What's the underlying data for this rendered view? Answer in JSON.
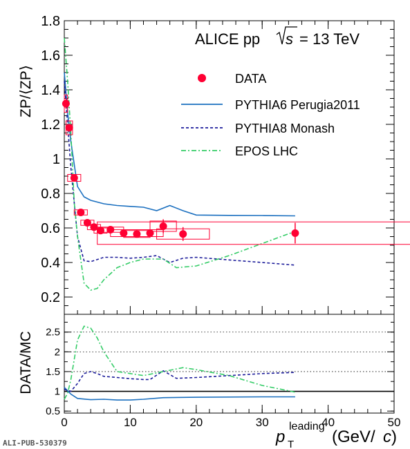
{
  "chart_data": [
    {
      "panel": "main",
      "type": "scatter",
      "title": "ALICE pp",
      "energy_label": "= 13 TeV",
      "ylabel": "ZP/⟨ZP⟩",
      "xlim": [
        0,
        50
      ],
      "ylim": [
        0.1,
        1.8
      ],
      "yticks": [
        0.2,
        0.4,
        0.6,
        0.8,
        1,
        1.2,
        1.4,
        1.6,
        1.8
      ],
      "legend_placement": "upper-right",
      "series": [
        {
          "name": "DATA",
          "kind": "points",
          "color": "#ff0033",
          "x": [
            0.25,
            0.75,
            1.5,
            2.5,
            3.5,
            4.5,
            5.5,
            7,
            9,
            11,
            13,
            15,
            18,
            35
          ],
          "y": [
            1.32,
            1.18,
            0.89,
            0.69,
            0.63,
            0.605,
            0.585,
            0.59,
            0.57,
            0.565,
            0.57,
            0.61,
            0.565,
            0.57
          ],
          "yerr": [
            0.03,
            0.02,
            0.015,
            0.015,
            0.015,
            0.015,
            0.015,
            0.015,
            0.02,
            0.02,
            0.02,
            0.04,
            0.04,
            0.06
          ],
          "syst_x": [
            0.25,
            0.5,
            1,
            1,
            1,
            1,
            1,
            2,
            2,
            2,
            2,
            2,
            4,
            30
          ],
          "syst_y": [
            0.05,
            0.04,
            0.02,
            0.015,
            0.015,
            0.015,
            0.015,
            0.015,
            0.02,
            0.02,
            0.02,
            0.03,
            0.03,
            0.065
          ]
        },
        {
          "name": "PYTHIA6 Perugia2011",
          "kind": "solid",
          "color": "#1a6fbf",
          "x": [
            0,
            0.5,
            1,
            2,
            3,
            4,
            6,
            8,
            10,
            12,
            14,
            16,
            18,
            20,
            25,
            30,
            35
          ],
          "y": [
            1.5,
            1.27,
            1.1,
            0.84,
            0.78,
            0.76,
            0.74,
            0.73,
            0.725,
            0.72,
            0.7,
            0.73,
            0.7,
            0.675,
            0.673,
            0.672,
            0.67
          ]
        },
        {
          "name": "PYTHIA8 Monash",
          "kind": "dashed",
          "color": "#1a1a99",
          "x": [
            0,
            0.5,
            1,
            2,
            3,
            4,
            6,
            8,
            10,
            12,
            14,
            16,
            18,
            20,
            25,
            30,
            35
          ],
          "y": [
            1.45,
            1.2,
            0.95,
            0.55,
            0.41,
            0.405,
            0.43,
            0.43,
            0.425,
            0.43,
            0.44,
            0.4,
            0.425,
            0.43,
            0.415,
            0.4,
            0.385
          ]
        },
        {
          "name": "EPOS LHC",
          "kind": "dashdot",
          "color": "#33cc66",
          "x": [
            0,
            0.5,
            1,
            1.5,
            2,
            3,
            4,
            5,
            6,
            8,
            10,
            12,
            15,
            17,
            20,
            25,
            30,
            35
          ],
          "y": [
            1.7,
            1.45,
            1.15,
            0.75,
            0.55,
            0.28,
            0.24,
            0.25,
            0.3,
            0.37,
            0.4,
            0.42,
            0.42,
            0.37,
            0.38,
            0.44,
            0.51,
            0.58
          ]
        }
      ]
    },
    {
      "panel": "ratio",
      "type": "line",
      "ylabel": "DATA/MC",
      "xlabel_leading": "leading",
      "xlabel_unit": "(GeV/",
      "xlabel_close": ")",
      "xlim": [
        0,
        50
      ],
      "ylim": [
        0.45,
        2.95
      ],
      "yticks": [
        0.5,
        1,
        1.5,
        2,
        2.5
      ],
      "xticks": [
        0,
        10,
        20,
        30,
        40,
        50
      ],
      "reference_line": 1,
      "dotted_grid": [
        1.5,
        2,
        2.5
      ],
      "series": [
        {
          "name": "PYTHIA6 Perugia2011",
          "kind": "solid",
          "color": "#1a6fbf",
          "x": [
            0,
            1,
            2,
            4,
            6,
            8,
            10,
            12,
            15,
            20,
            30,
            35
          ],
          "y": [
            1.1,
            0.93,
            0.82,
            0.79,
            0.8,
            0.78,
            0.78,
            0.8,
            0.84,
            0.85,
            0.86,
            0.86
          ]
        },
        {
          "name": "PYTHIA8 Monash",
          "kind": "dashed",
          "color": "#1a1a99",
          "x": [
            0,
            1,
            2,
            3,
            4,
            5,
            6,
            8,
            10,
            12,
            13,
            15,
            17,
            20,
            25,
            30,
            35
          ],
          "y": [
            1.05,
            1.0,
            1.2,
            1.45,
            1.5,
            1.45,
            1.38,
            1.35,
            1.32,
            1.3,
            1.3,
            1.52,
            1.33,
            1.35,
            1.4,
            1.45,
            1.48
          ]
        },
        {
          "name": "EPOS LHC",
          "kind": "dashdot",
          "color": "#33cc66",
          "x": [
            0,
            0.5,
            1,
            2,
            3,
            4,
            5,
            6,
            8,
            10,
            12,
            15,
            18,
            20,
            25,
            30,
            35
          ],
          "y": [
            0.8,
            0.95,
            1.3,
            2.3,
            2.65,
            2.6,
            2.35,
            2.0,
            1.5,
            1.45,
            1.4,
            1.5,
            1.6,
            1.55,
            1.4,
            1.15,
            0.98
          ]
        }
      ]
    }
  ],
  "footer": {
    "id": "ALI-PUB-530379"
  }
}
